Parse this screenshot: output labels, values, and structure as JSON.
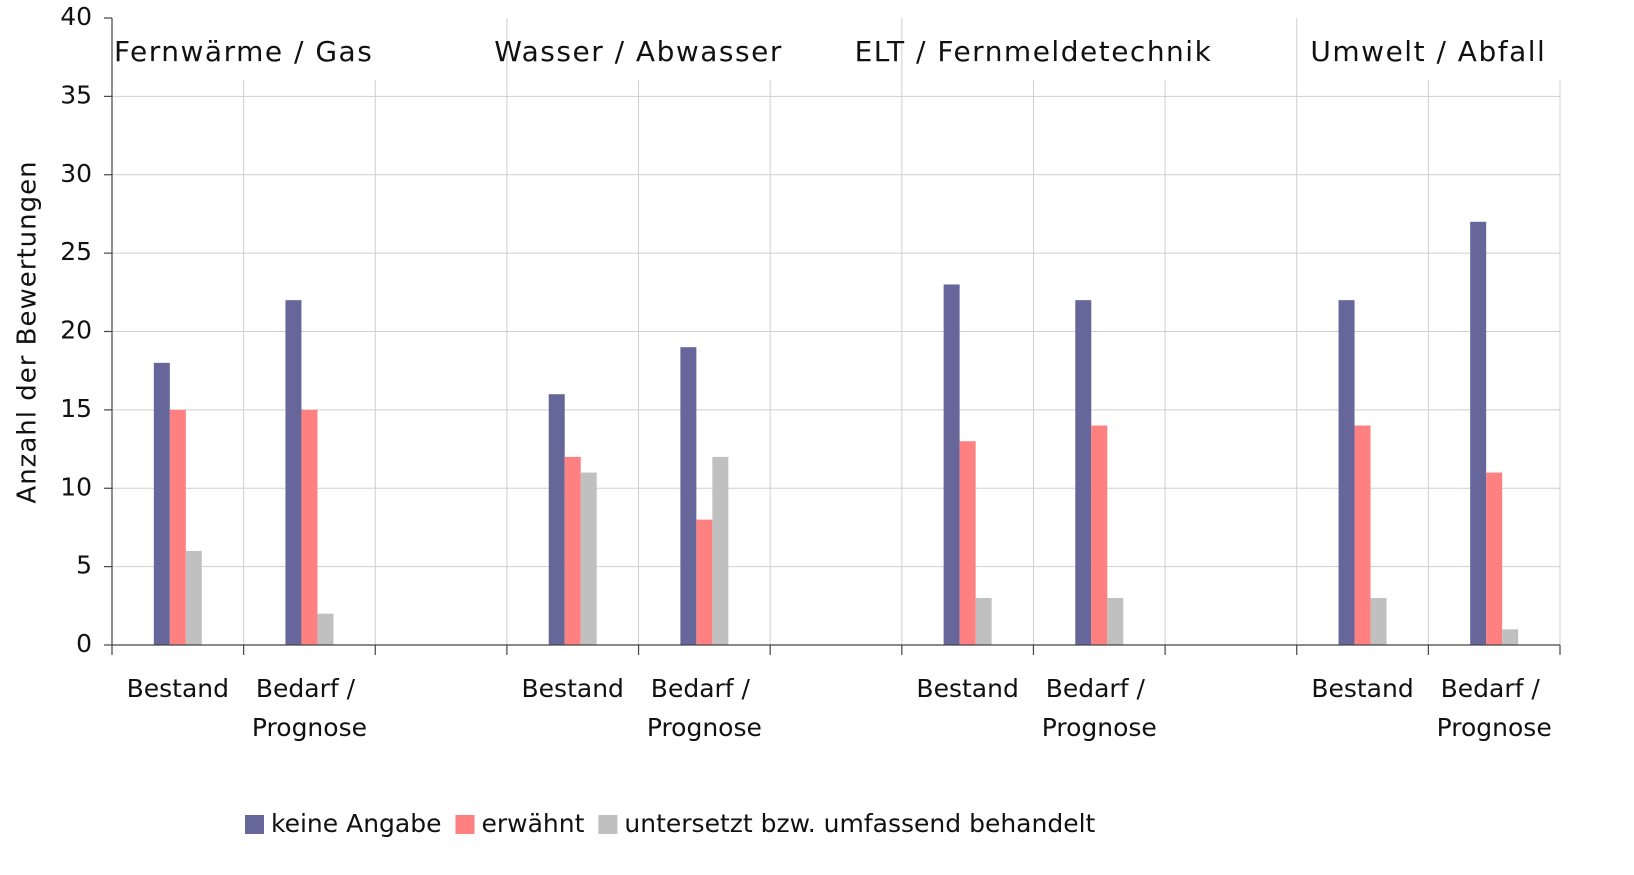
{
  "chart_data": {
    "type": "bar",
    "y_label": "Anzahl der Bewertungen",
    "group_titles": [
      "Fernwärme / Gas",
      "Wasser / Abwasser",
      "ELT / Fernmeldetechnik",
      "Umwelt / Abfall"
    ],
    "categories": [
      "Bestand",
      "Bedarf / Prognose",
      null,
      "Bestand",
      "Bedarf / Prognose",
      null,
      "Bestand",
      "Bedarf / Prognose",
      null,
      "Bestand",
      "Bedarf / Prognose"
    ],
    "series": [
      {
        "name": "keine Angabe",
        "color": "#66669a",
        "values": [
          18,
          22,
          null,
          16,
          19,
          null,
          23,
          22,
          null,
          22,
          27
        ]
      },
      {
        "name": "erwähnt",
        "color": "#ff8080",
        "values": [
          15,
          15,
          null,
          12,
          8,
          null,
          13,
          14,
          null,
          14,
          11
        ]
      },
      {
        "name": "untersetzt bzw. umfassend behandelt",
        "color": "#c0c0c0",
        "values": [
          6,
          2,
          null,
          11,
          12,
          null,
          3,
          3,
          null,
          3,
          1
        ]
      }
    ],
    "ylim": [
      0,
      40
    ],
    "yticks": [
      0,
      5,
      10,
      15,
      20,
      25,
      30,
      35,
      40
    ],
    "grid": true,
    "legend": "bottom"
  }
}
